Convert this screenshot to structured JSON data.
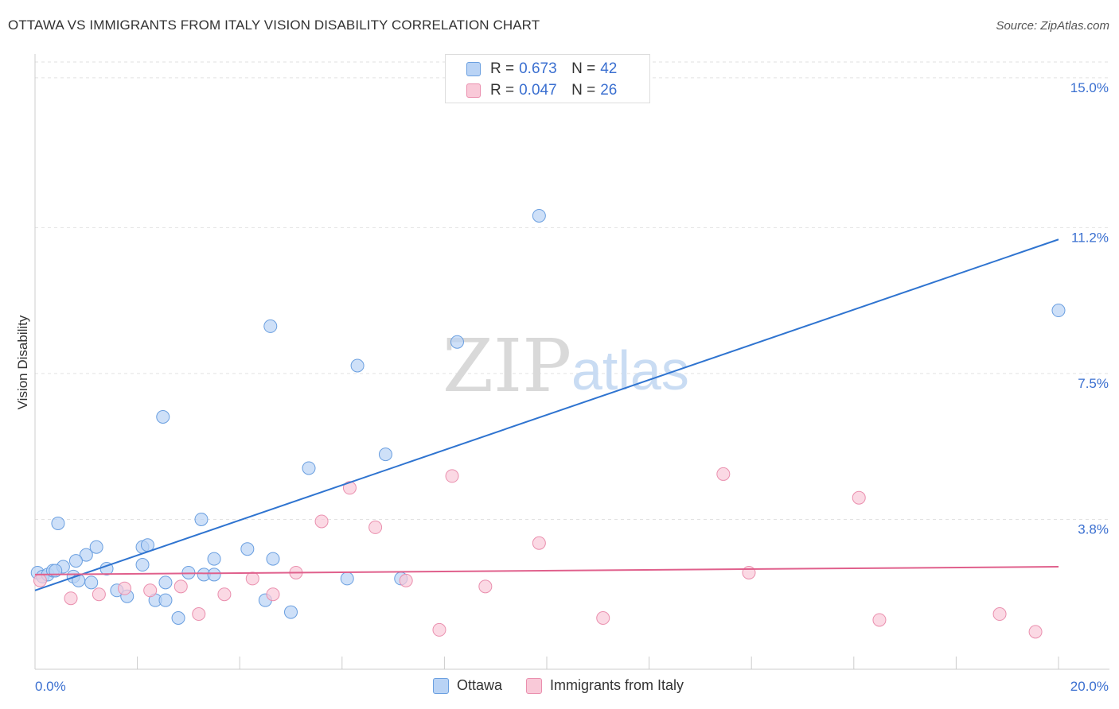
{
  "header": {
    "title": "OTTAWA VS IMMIGRANTS FROM ITALY VISION DISABILITY CORRELATION CHART",
    "source": "Source: ZipAtlas.com"
  },
  "legend": {
    "rows": [
      {
        "r_label": "R =",
        "r_value": "0.673",
        "n_label": "N =",
        "n_value": "42"
      },
      {
        "r_label": "R =",
        "r_value": "0.047",
        "n_label": "N =",
        "n_value": "26"
      }
    ]
  },
  "watermark": {
    "zip": "ZIP",
    "atlas": "atlas"
  },
  "colors": {
    "ottawa_fill": "#b9d3f5",
    "ottawa_stroke": "#6a9fe0",
    "ottawa_line": "#2f74d0",
    "italy_fill": "#f9c9d8",
    "italy_stroke": "#ea8fae",
    "italy_line": "#e0608c",
    "grid": "#e2e2e2",
    "axis_label": "#3a6fd0"
  },
  "chart_data": {
    "type": "scatter",
    "title": "OTTAWA VS IMMIGRANTS FROM ITALY VISION DISABILITY CORRELATION CHART",
    "xlabel": "",
    "ylabel": "Vision Disability",
    "xlim": [
      0,
      20
    ],
    "ylim": [
      0,
      15.4
    ],
    "x_tick_labels": [
      {
        "value": 0,
        "label": "0.0%"
      },
      {
        "value": 20,
        "label": "20.0%"
      }
    ],
    "y_ticks": [
      {
        "value": 3.8,
        "label": "3.8%"
      },
      {
        "value": 7.5,
        "label": "7.5%"
      },
      {
        "value": 11.2,
        "label": "11.2%"
      },
      {
        "value": 15.0,
        "label": "15.0%"
      }
    ],
    "series": [
      {
        "name": "Ottawa",
        "color": "#6a9fe0",
        "points": [
          [
            0.05,
            2.45
          ],
          [
            0.15,
            2.35
          ],
          [
            0.25,
            2.4
          ],
          [
            0.35,
            2.5
          ],
          [
            0.45,
            3.7
          ],
          [
            0.55,
            2.6
          ],
          [
            0.75,
            2.35
          ],
          [
            0.85,
            2.25
          ],
          [
            1.1,
            2.2
          ],
          [
            1.4,
            2.55
          ],
          [
            1.6,
            2.0
          ],
          [
            1.8,
            1.85
          ],
          [
            2.1,
            3.1
          ],
          [
            2.2,
            3.15
          ],
          [
            2.1,
            2.65
          ],
          [
            2.35,
            1.75
          ],
          [
            2.55,
            1.75
          ],
          [
            2.55,
            2.2
          ],
          [
            2.8,
            1.3
          ],
          [
            3.0,
            2.45
          ],
          [
            3.3,
            2.4
          ],
          [
            3.5,
            2.4
          ],
          [
            3.5,
            2.8
          ],
          [
            4.15,
            3.05
          ],
          [
            4.5,
            1.75
          ],
          [
            4.65,
            2.8
          ],
          [
            5.0,
            1.45
          ],
          [
            5.35,
            5.1
          ],
          [
            6.1,
            2.3
          ],
          [
            7.15,
            2.3
          ],
          [
            8.25,
            8.3
          ],
          [
            9.85,
            11.5
          ],
          [
            2.5,
            6.4
          ],
          [
            3.25,
            3.8
          ],
          [
            4.6,
            8.7
          ],
          [
            6.3,
            7.7
          ],
          [
            6.85,
            5.45
          ],
          [
            1.2,
            3.1
          ],
          [
            1.0,
            2.9
          ],
          [
            0.8,
            2.75
          ],
          [
            0.4,
            2.5
          ],
          [
            20.0,
            9.1
          ]
        ]
      },
      {
        "name": "Immigrants from Italy",
        "color": "#ea8fae",
        "points": [
          [
            0.1,
            2.25
          ],
          [
            0.7,
            1.8
          ],
          [
            1.25,
            1.9
          ],
          [
            1.75,
            2.05
          ],
          [
            2.25,
            2.0
          ],
          [
            2.85,
            2.1
          ],
          [
            3.2,
            1.4
          ],
          [
            3.7,
            1.9
          ],
          [
            4.25,
            2.3
          ],
          [
            4.65,
            1.9
          ],
          [
            5.1,
            2.45
          ],
          [
            5.6,
            3.75
          ],
          [
            6.15,
            4.6
          ],
          [
            6.65,
            3.6
          ],
          [
            7.25,
            2.25
          ],
          [
            7.9,
            1.0
          ],
          [
            8.15,
            4.9
          ],
          [
            8.8,
            2.1
          ],
          [
            9.85,
            3.2
          ],
          [
            11.1,
            1.3
          ],
          [
            13.45,
            4.95
          ],
          [
            13.95,
            2.45
          ],
          [
            16.1,
            4.35
          ],
          [
            16.5,
            1.25
          ],
          [
            18.85,
            1.4
          ],
          [
            19.55,
            0.95
          ]
        ]
      }
    ],
    "trendlines": [
      {
        "series": "Ottawa",
        "x": [
          0.0,
          20.0
        ],
        "y": [
          2.0,
          10.9
        ]
      },
      {
        "series": "Immigrants from Italy",
        "x": [
          0.0,
          20.0
        ],
        "y": [
          2.4,
          2.6
        ]
      }
    ],
    "legend_position": "top-center",
    "grid": true
  }
}
